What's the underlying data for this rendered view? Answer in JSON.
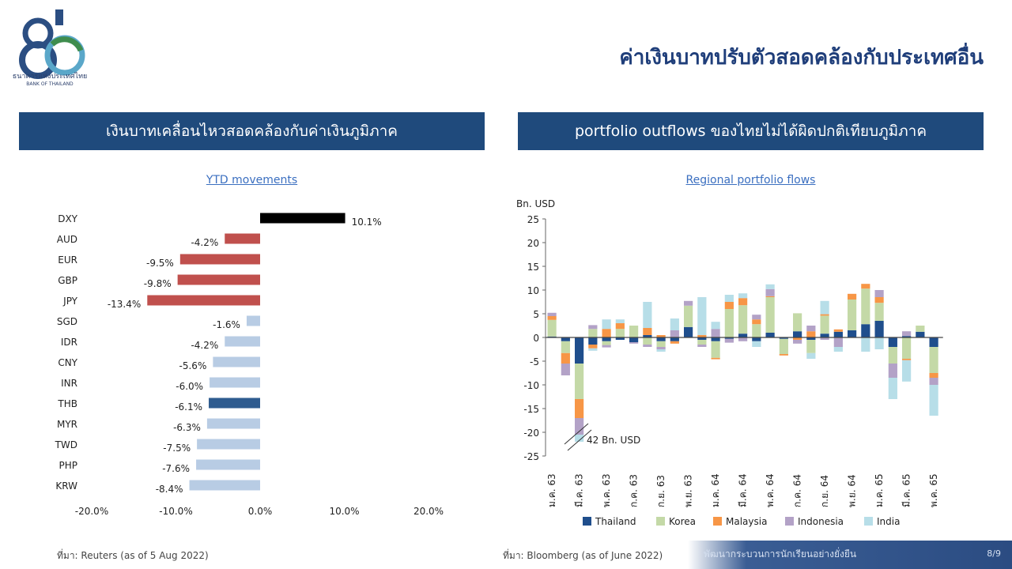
{
  "header": {
    "main_title": "ค่าเงินบาทปรับตัวสอดคล้องกับประเทศอื่น",
    "logo_text_th": "ธนาคารแห่งประเทศไทย",
    "logo_text_en": "BANK OF THAILAND"
  },
  "left_panel": {
    "banner": "เงินบาทเคลื่อนไหวสอดคล้องกับค่าเงินภูมิภาค",
    "source": "ที่มา: Reuters (as of 5 Aug 2022)"
  },
  "right_panel": {
    "banner": "portfolio outflows ของไทยไม่ได้ผิดปกติเทียบภูมิภาค",
    "source": "ที่มา: Bloomberg (as of June 2022)"
  },
  "footer": {
    "tagline": "พัฒนากระบวนการนักเรียนอย่างยั่งยืน",
    "page": "8/9"
  },
  "chart_data": [
    {
      "type": "bar",
      "orientation": "horizontal",
      "title": "YTD movements",
      "categories": [
        "DXY",
        "AUD",
        "EUR",
        "GBP",
        "JPY",
        "SGD",
        "IDR",
        "CNY",
        "INR",
        "THB",
        "MYR",
        "TWD",
        "PHP",
        "KRW"
      ],
      "values": [
        10.1,
        -4.2,
        -9.5,
        -9.8,
        -13.4,
        -1.6,
        -4.2,
        -5.6,
        -6.0,
        -6.1,
        -6.3,
        -7.5,
        -7.6,
        -8.4
      ],
      "data_labels": [
        "10.1%",
        "-4.2%",
        "-9.5%",
        "-9.8%",
        "-13.4%",
        "-1.6%",
        "-4.2%",
        "-5.6%",
        "-6.0%",
        "-6.1%",
        "-6.3%",
        "-7.5%",
        "-7.6%",
        "-8.4%"
      ],
      "colors": [
        "#000000",
        "#c0504d",
        "#c0504d",
        "#c0504d",
        "#c0504d",
        "#b8cce4",
        "#b8cce4",
        "#b8cce4",
        "#b8cce4",
        "#2e5b8f",
        "#b8cce4",
        "#b8cce4",
        "#b8cce4",
        "#b8cce4"
      ],
      "xlim": [
        -20,
        20
      ],
      "xticks": [
        "-20.0%",
        "-10.0%",
        "0.0%",
        "10.0%",
        "20.0%"
      ]
    },
    {
      "type": "bar",
      "stacked": true,
      "title": "Regional portfolio flows",
      "ylabel": "Bn. USD",
      "ylim": [
        -25,
        25
      ],
      "yticks": [
        "25",
        "20",
        "15",
        "10",
        "5",
        "0",
        "-5",
        "-10",
        "-15",
        "-20",
        "-25"
      ],
      "x_tick_labels": [
        "ม.ค. 63",
        "มี.ค. 63",
        "พ.ค. 63",
        "ก.ค. 63",
        "ก.ย. 63",
        "พ.ย. 63",
        "ม.ค. 64",
        "มี.ค. 64",
        "พ.ค. 64",
        "ก.ค. 64",
        "ก.ย. 64",
        "พ.ย. 64",
        "ม.ค. 65",
        "มี.ค. 65",
        "พ.ค. 65"
      ],
      "annotation": "42 Bn. USD",
      "series": [
        {
          "name": "Thailand",
          "color": "#1f4e8c",
          "values": [
            0.2,
            -0.8,
            -5.5,
            -1.5,
            -0.8,
            -0.5,
            -1.0,
            0.5,
            -0.8,
            -0.8,
            2.2,
            -0.5,
            -0.8,
            -0.3,
            0.8,
            -0.8,
            1.0,
            -0.3,
            1.3,
            -0.5,
            0.8,
            1.2,
            1.5,
            2.8,
            3.5,
            -2.0,
            0.3,
            1.2,
            -2.0
          ]
        },
        {
          "name": "Korea",
          "color": "#c4d9a7",
          "values": [
            3.5,
            -2.5,
            -7.5,
            1.8,
            -0.8,
            1.8,
            2.5,
            -1.5,
            -1.2,
            0.0,
            4.5,
            -1.0,
            -3.5,
            6.0,
            6.0,
            2.8,
            7.5,
            -3.2,
            3.8,
            -2.8,
            3.8,
            0.0,
            6.5,
            7.5,
            3.8,
            -3.5,
            -4.5,
            1.3,
            -5.5
          ]
        },
        {
          "name": "Malaysia",
          "color": "#f79646",
          "values": [
            0.8,
            -2.2,
            -4.0,
            -0.8,
            1.8,
            1.2,
            0.0,
            1.5,
            0.5,
            -0.5,
            0.0,
            0.5,
            -0.3,
            1.5,
            1.5,
            1.0,
            0.2,
            -0.3,
            -0.5,
            1.3,
            0.3,
            0.5,
            1.2,
            1.0,
            1.2,
            0.0,
            -0.3,
            0.0,
            -1.0
          ]
        },
        {
          "name": "Indonesia",
          "color": "#b3a2c7",
          "values": [
            0.7,
            -2.5,
            -3.5,
            0.8,
            -0.5,
            0.0,
            -0.3,
            -0.5,
            -0.5,
            1.5,
            1.0,
            -0.5,
            1.8,
            -0.8,
            -0.8,
            1.0,
            1.5,
            0.0,
            -0.8,
            1.2,
            -0.5,
            -2.0,
            0.0,
            0.0,
            1.5,
            -3.0,
            1.0,
            0.0,
            -1.5
          ]
        },
        {
          "name": "India",
          "color": "#b7dee8",
          "values": [
            0.0,
            0.0,
            -1.5,
            -0.5,
            2.0,
            0.8,
            0.0,
            5.5,
            -0.5,
            2.5,
            0.0,
            8.0,
            1.5,
            1.5,
            1.0,
            -1.2,
            1.0,
            0.0,
            0.0,
            -1.2,
            2.8,
            -1.0,
            0.0,
            -3.0,
            -2.5,
            -4.5,
            -4.5,
            0.0,
            -6.5
          ]
        }
      ]
    }
  ]
}
